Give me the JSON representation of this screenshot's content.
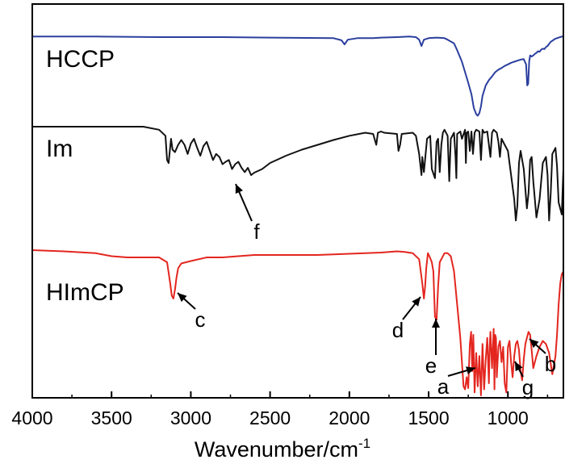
{
  "chart_data": {
    "type": "line",
    "xlabel": "Wavenumber/cm",
    "xlabel_superscript": "-1",
    "ylabel": "",
    "xlim": [
      4000,
      650
    ],
    "reversed_x": true,
    "grid": false,
    "x_ticks": [
      4000,
      3500,
      3000,
      2500,
      2000,
      1500,
      1000
    ],
    "series": [
      {
        "name": "HCCP",
        "color": "#2b3f9e",
        "x": [
          4000,
          3600,
          3200,
          2800,
          2500,
          2100,
          2050,
          2030,
          2010,
          1950,
          1850,
          1800,
          1700,
          1620,
          1580,
          1560,
          1545,
          1530,
          1500,
          1450,
          1400,
          1380,
          1340,
          1320,
          1290,
          1270,
          1250,
          1230,
          1215,
          1200,
          1190,
          1180,
          1170,
          1160,
          1140,
          1120,
          1100,
          1080,
          1060,
          1040,
          1020,
          1000,
          980,
          960,
          940,
          920,
          900,
          885,
          878,
          872,
          866,
          860,
          850,
          840,
          830,
          820,
          810,
          800,
          790,
          780,
          770,
          760,
          750,
          740,
          730,
          720,
          710,
          700,
          690,
          680,
          670,
          660,
          650
        ],
        "y": [
          -0.02,
          -0.02,
          -0.03,
          -0.03,
          -0.04,
          -0.05,
          -0.09,
          -0.17,
          -0.08,
          -0.05,
          -0.05,
          -0.04,
          -0.03,
          -0.02,
          -0.03,
          -0.08,
          -0.2,
          -0.08,
          -0.05,
          -0.04,
          -0.05,
          -0.08,
          -0.15,
          -0.28,
          -0.5,
          -0.7,
          -0.9,
          -1.12,
          -1.38,
          -1.5,
          -1.53,
          -1.48,
          -1.35,
          -1.15,
          -0.95,
          -0.85,
          -0.78,
          -0.7,
          -0.65,
          -0.62,
          -0.58,
          -0.55,
          -0.52,
          -0.5,
          -0.48,
          -0.46,
          -0.45,
          -0.55,
          -0.95,
          -0.92,
          -0.5,
          -0.38,
          -0.4,
          -0.38,
          -0.35,
          -0.33,
          -0.3,
          -0.31,
          -0.27,
          -0.25,
          -0.26,
          -0.22,
          -0.2,
          -0.16,
          -0.12,
          -0.1,
          -0.08,
          -0.06,
          -0.05,
          -0.04,
          -0.03,
          -0.02,
          -0.02
        ]
      },
      {
        "name": "Im",
        "color": "#111111",
        "x": [
          4000,
          3500,
          3300,
          3200,
          3160,
          3150,
          3140,
          3125,
          3115,
          3100,
          3080,
          3060,
          3040,
          3020,
          3000,
          2980,
          2960,
          2940,
          2920,
          2900,
          2880,
          2860,
          2840,
          2820,
          2800,
          2780,
          2760,
          2740,
          2720,
          2700,
          2680,
          2660,
          2640,
          2620,
          2600,
          2550,
          2500,
          2400,
          2300,
          2200,
          2100,
          2000,
          1900,
          1850,
          1830,
          1820,
          1800,
          1780,
          1700,
          1690,
          1680,
          1670,
          1600,
          1580,
          1560,
          1545,
          1540,
          1530,
          1510,
          1490,
          1480,
          1460,
          1450,
          1440,
          1430,
          1420,
          1410,
          1400,
          1380,
          1370,
          1360,
          1340,
          1330,
          1325,
          1320,
          1300,
          1290,
          1270,
          1265,
          1260,
          1250,
          1240,
          1230,
          1220,
          1210,
          1200,
          1180,
          1170,
          1160,
          1150,
          1130,
          1110,
          1100,
          1090,
          1070,
          1060,
          1050,
          1040,
          1020,
          1000,
          980,
          960,
          950,
          940,
          930,
          920,
          900,
          880,
          870,
          860,
          850,
          840,
          820,
          800,
          780,
          760,
          750,
          740,
          730,
          720,
          700,
          690,
          680,
          660,
          650
        ],
        "y": [
          0.0,
          0.0,
          0.0,
          -0.05,
          -0.15,
          -0.55,
          -0.6,
          -0.2,
          -0.38,
          -0.42,
          -0.3,
          -0.22,
          -0.3,
          -0.45,
          -0.28,
          -0.2,
          -0.35,
          -0.48,
          -0.32,
          -0.25,
          -0.4,
          -0.55,
          -0.45,
          -0.5,
          -0.62,
          -0.58,
          -0.55,
          -0.7,
          -0.62,
          -0.58,
          -0.68,
          -0.75,
          -0.68,
          -0.8,
          -0.76,
          -0.7,
          -0.6,
          -0.48,
          -0.38,
          -0.3,
          -0.22,
          -0.15,
          -0.1,
          -0.12,
          -0.3,
          -0.1,
          -0.08,
          -0.1,
          -0.12,
          -0.4,
          -0.3,
          -0.12,
          -0.1,
          -0.15,
          -0.45,
          -0.8,
          -0.5,
          -0.75,
          -0.2,
          -0.15,
          -0.7,
          -0.85,
          -0.25,
          -0.2,
          -0.75,
          -0.3,
          -0.1,
          -0.05,
          -0.15,
          -0.9,
          -0.2,
          -0.1,
          -0.5,
          -0.85,
          -0.12,
          -0.08,
          -0.2,
          -0.05,
          -0.6,
          -0.1,
          -0.08,
          -0.4,
          -0.08,
          -0.45,
          -0.1,
          -0.05,
          -0.08,
          -0.55,
          -0.05,
          -0.1,
          -0.08,
          -0.5,
          -0.1,
          -0.05,
          -0.1,
          -0.25,
          -0.5,
          -0.2,
          -0.3,
          -0.4,
          -0.8,
          -1.2,
          -1.55,
          -1.3,
          -0.6,
          -0.4,
          -0.7,
          -1.35,
          -1.1,
          -0.55,
          -0.5,
          -0.9,
          -1.5,
          -1.2,
          -0.6,
          -0.5,
          -0.8,
          -1.55,
          -1.1,
          -0.45,
          -0.35,
          -0.65,
          -1.25,
          -1.45,
          -0.7
        ]
      },
      {
        "name": "HImCP",
        "color": "#e3261f",
        "x": [
          4000,
          3800,
          3600,
          3500,
          3400,
          3300,
          3200,
          3150,
          3130,
          3120,
          3110,
          3100,
          3090,
          3080,
          3060,
          3000,
          2900,
          2800,
          2700,
          2600,
          2500,
          2400,
          2300,
          2200,
          2100,
          2000,
          1900,
          1800,
          1700,
          1650,
          1600,
          1560,
          1540,
          1530,
          1522,
          1515,
          1505,
          1495,
          1480,
          1470,
          1460,
          1450,
          1440,
          1430,
          1400,
          1380,
          1360,
          1340,
          1320,
          1300,
          1290,
          1280,
          1270,
          1260,
          1250,
          1240,
          1232,
          1225,
          1218,
          1210,
          1200,
          1190,
          1180,
          1170,
          1160,
          1150,
          1140,
          1130,
          1120,
          1115,
          1110,
          1100,
          1090,
          1085,
          1080,
          1075,
          1070,
          1060,
          1050,
          1040,
          1030,
          1020,
          1010,
          1000,
          990,
          980,
          970,
          960,
          950,
          940,
          930,
          920,
          910,
          900,
          890,
          880,
          870,
          860,
          850,
          840,
          820,
          800,
          780,
          760,
          740,
          720,
          700,
          690,
          680,
          670,
          660,
          650
        ],
        "y": [
          0.0,
          -0.02,
          -0.05,
          -0.1,
          -0.12,
          -0.12,
          -0.12,
          -0.2,
          -0.55,
          -0.75,
          -0.8,
          -0.65,
          -0.45,
          -0.3,
          -0.22,
          -0.18,
          -0.12,
          -0.12,
          -0.1,
          -0.08,
          -0.08,
          -0.08,
          -0.08,
          -0.08,
          -0.07,
          -0.06,
          -0.05,
          -0.04,
          -0.02,
          -0.03,
          -0.05,
          -0.15,
          -0.55,
          -0.8,
          -0.6,
          -0.3,
          -0.05,
          -0.1,
          -0.2,
          -0.35,
          -1.1,
          -1.15,
          -0.6,
          -0.2,
          -0.05,
          -0.05,
          -0.1,
          -0.35,
          -0.9,
          -1.45,
          -1.85,
          -2.25,
          -2.3,
          -2.1,
          -2.28,
          -1.55,
          -1.35,
          -2.0,
          -1.4,
          -2.35,
          -1.7,
          -2.25,
          -1.75,
          -2.4,
          -1.55,
          -2.3,
          -1.8,
          -1.45,
          -2.2,
          -1.6,
          -1.35,
          -1.95,
          -1.3,
          -2.3,
          -1.4,
          -1.45,
          -2.1,
          -1.6,
          -1.5,
          -1.85,
          -1.6,
          -2.2,
          -2.35,
          -1.6,
          -1.5,
          -1.85,
          -2.1,
          -1.75,
          -1.55,
          -1.5,
          -1.65,
          -2.0,
          -2.15,
          -1.8,
          -1.55,
          -1.45,
          -1.35,
          -1.4,
          -1.65,
          -1.95,
          -1.75,
          -1.6,
          -1.5,
          -1.55,
          -1.7,
          -2.05,
          -1.75,
          -1.4,
          -0.9,
          -0.55,
          -0.4,
          -0.35
        ]
      }
    ],
    "series_labels": [
      "HCCP",
      "Im",
      "HImCP"
    ],
    "annotations": [
      {
        "label": "f",
        "target": "Im",
        "x": 2740
      },
      {
        "label": "c",
        "target": "HImCP",
        "x": 3100
      },
      {
        "label": "d",
        "target": "HImCP",
        "x": 1530
      },
      {
        "label": "e",
        "target": "HImCP",
        "x": 1460
      },
      {
        "label": "a",
        "target": "HImCP",
        "x": 1225
      },
      {
        "label": "g",
        "target": "HImCP",
        "x": 1010
      },
      {
        "label": "b",
        "target": "HImCP",
        "x": 900
      }
    ]
  }
}
